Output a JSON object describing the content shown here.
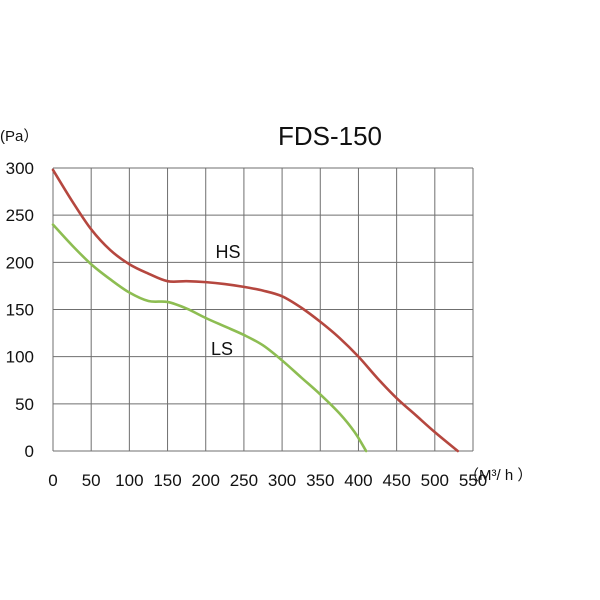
{
  "chart_data": {
    "type": "line",
    "title": "FDS-150",
    "ylabel": "(Pa）",
    "xlabel": "（M³/ h ）",
    "xlim": [
      0,
      550
    ],
    "ylim": [
      0,
      300
    ],
    "x_ticks": [
      "0",
      "50",
      "100",
      "150",
      "200",
      "250",
      "300",
      "350",
      "400",
      "450",
      "500",
      "550"
    ],
    "y_ticks": [
      "0",
      "50",
      "100",
      "150",
      "200",
      "250",
      "300"
    ],
    "grid": true,
    "series": [
      {
        "name": "HS",
        "color": "#b5473f",
        "x": [
          0,
          25,
          50,
          75,
          100,
          125,
          150,
          175,
          200,
          225,
          250,
          275,
          300,
          325,
          350,
          375,
          400,
          425,
          450,
          475,
          500,
          530
        ],
        "y": [
          298,
          265,
          235,
          213,
          198,
          188,
          180,
          180,
          179,
          177,
          174,
          170,
          164,
          152,
          137,
          120,
          100,
          77,
          56,
          38,
          20,
          0
        ]
      },
      {
        "name": "LS",
        "color": "#8dbd52",
        "x": [
          0,
          25,
          50,
          75,
          100,
          125,
          150,
          175,
          200,
          225,
          250,
          275,
          300,
          325,
          350,
          375,
          395,
          410
        ],
        "y": [
          240,
          218,
          198,
          182,
          168,
          159,
          158,
          151,
          141,
          132,
          123,
          112,
          96,
          78,
          60,
          40,
          20,
          0
        ]
      }
    ]
  }
}
